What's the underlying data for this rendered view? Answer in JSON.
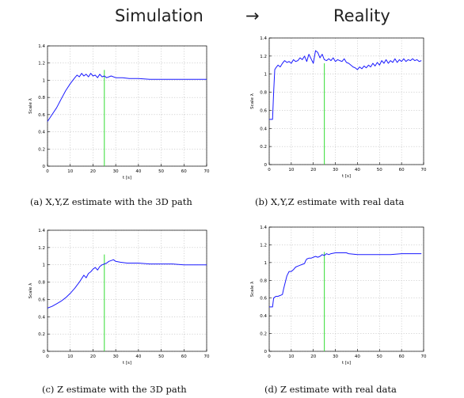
{
  "header": {
    "left": "Simulation",
    "arrow": "→",
    "right": "Reality"
  },
  "captions": [
    "(a) X,Y,Z estimate with the 3D path",
    "(b) X,Y,Z estimate with real data",
    "(c) Z estimate with the 3D path",
    "(d) Z estimate with real data"
  ],
  "colors": {
    "series": "#1a1aff",
    "marker": "#33dd33",
    "grid": "#bbbbbb",
    "axis": "#000000"
  },
  "chart_data": [
    {
      "type": "line",
      "xlabel": "t [s]",
      "ylabel": "Scale λ",
      "xlim": [
        0,
        70
      ],
      "ylim": [
        0,
        1.4
      ],
      "xticks": [
        0,
        10,
        20,
        30,
        40,
        50,
        60,
        70
      ],
      "yticks": [
        0,
        0.2,
        0.4,
        0.6,
        0.8,
        1,
        1.2,
        1.4
      ],
      "grid": true,
      "marker_x": 25,
      "series": [
        {
          "x": [
            0,
            2,
            4,
            6,
            8,
            10,
            12,
            13,
            14,
            15,
            16,
            17,
            18,
            19,
            20,
            21,
            22,
            23,
            24,
            25,
            26,
            27,
            28,
            30,
            33,
            36,
            40,
            45,
            50,
            55,
            60,
            65,
            70
          ],
          "y": [
            0.52,
            0.6,
            0.68,
            0.78,
            0.88,
            0.96,
            1.03,
            1.06,
            1.04,
            1.08,
            1.05,
            1.07,
            1.04,
            1.08,
            1.05,
            1.06,
            1.03,
            1.07,
            1.04,
            1.05,
            1.03,
            1.04,
            1.05,
            1.03,
            1.03,
            1.02,
            1.02,
            1.01,
            1.01,
            1.01,
            1.01,
            1.01,
            1.01
          ]
        }
      ]
    },
    {
      "type": "line",
      "xlabel": "t [s]",
      "ylabel": "Scale λ",
      "xlim": [
        0,
        70
      ],
      "ylim": [
        0,
        1.4
      ],
      "xticks": [
        0,
        10,
        20,
        30,
        40,
        50,
        60,
        70
      ],
      "yticks": [
        0,
        0.2,
        0.4,
        0.6,
        0.8,
        1,
        1.2,
        1.4
      ],
      "grid": true,
      "marker_x": 25,
      "series": [
        {
          "x": [
            0,
            1.5,
            2,
            2.5,
            3,
            4,
            5,
            6,
            7,
            8,
            9,
            10,
            11,
            12,
            13,
            14,
            15,
            16,
            17,
            18,
            19,
            20,
            21,
            22,
            23,
            24,
            25,
            26,
            27,
            28,
            29,
            30,
            31,
            32,
            33,
            34,
            35,
            36,
            37,
            38,
            39,
            40,
            41,
            42,
            43,
            44,
            45,
            46,
            47,
            48,
            49,
            50,
            51,
            52,
            53,
            54,
            55,
            56,
            57,
            58,
            59,
            60,
            61,
            62,
            63,
            64,
            65,
            66,
            67,
            68,
            69
          ],
          "y": [
            0.5,
            0.5,
            0.8,
            1.05,
            1.07,
            1.1,
            1.08,
            1.12,
            1.15,
            1.13,
            1.14,
            1.12,
            1.16,
            1.14,
            1.15,
            1.18,
            1.16,
            1.2,
            1.14,
            1.22,
            1.17,
            1.12,
            1.26,
            1.24,
            1.18,
            1.22,
            1.16,
            1.15,
            1.17,
            1.15,
            1.18,
            1.14,
            1.16,
            1.15,
            1.14,
            1.17,
            1.13,
            1.12,
            1.1,
            1.08,
            1.07,
            1.05,
            1.08,
            1.06,
            1.09,
            1.07,
            1.1,
            1.08,
            1.12,
            1.09,
            1.13,
            1.1,
            1.15,
            1.12,
            1.16,
            1.12,
            1.15,
            1.13,
            1.17,
            1.13,
            1.16,
            1.14,
            1.17,
            1.14,
            1.16,
            1.15,
            1.17,
            1.15,
            1.16,
            1.14,
            1.15
          ]
        }
      ]
    },
    {
      "type": "line",
      "xlabel": "t [s]",
      "ylabel": "Scale λ",
      "xlim": [
        0,
        70
      ],
      "ylim": [
        0,
        1.4
      ],
      "xticks": [
        0,
        10,
        20,
        30,
        40,
        50,
        60,
        70
      ],
      "yticks": [
        0,
        0.2,
        0.4,
        0.6,
        0.8,
        1,
        1.2,
        1.4
      ],
      "grid": true,
      "marker_x": 25,
      "series": [
        {
          "x": [
            0,
            2,
            4,
            6,
            8,
            10,
            12,
            14,
            16,
            17,
            18,
            19,
            20,
            21,
            22,
            23,
            24,
            25,
            26,
            27,
            28,
            29,
            30,
            32,
            35,
            40,
            45,
            50,
            55,
            60,
            65,
            70
          ],
          "y": [
            0.5,
            0.52,
            0.55,
            0.58,
            0.62,
            0.67,
            0.73,
            0.8,
            0.88,
            0.85,
            0.9,
            0.92,
            0.95,
            0.97,
            0.94,
            0.98,
            1.0,
            1.01,
            1.02,
            1.04,
            1.05,
            1.06,
            1.04,
            1.03,
            1.02,
            1.02,
            1.01,
            1.01,
            1.01,
            1.0,
            1.0,
            1.0
          ]
        }
      ]
    },
    {
      "type": "line",
      "xlabel": "t [s]",
      "ylabel": "Scale λ",
      "xlim": [
        0,
        70
      ],
      "ylim": [
        0,
        1.4
      ],
      "xticks": [
        0,
        10,
        20,
        30,
        40,
        50,
        60,
        70
      ],
      "yticks": [
        0,
        0.2,
        0.4,
        0.6,
        0.8,
        1,
        1.2,
        1.4
      ],
      "grid": true,
      "marker_x": 25,
      "series": [
        {
          "x": [
            0,
            1.5,
            2,
            3,
            4,
            5,
            6,
            6.5,
            7,
            8,
            9,
            10,
            11,
            12,
            13,
            14,
            15,
            16,
            16.5,
            17,
            18,
            19,
            20,
            21,
            22,
            23,
            24,
            25,
            26,
            27,
            28,
            30,
            32,
            34,
            35,
            36,
            40,
            45,
            50,
            55,
            60,
            65,
            69
          ],
          "y": [
            0.5,
            0.5,
            0.6,
            0.62,
            0.62,
            0.63,
            0.64,
            0.7,
            0.75,
            0.85,
            0.9,
            0.9,
            0.92,
            0.95,
            0.96,
            0.97,
            0.98,
            0.99,
            1.02,
            1.04,
            1.05,
            1.05,
            1.06,
            1.07,
            1.06,
            1.07,
            1.09,
            1.08,
            1.1,
            1.09,
            1.1,
            1.11,
            1.11,
            1.11,
            1.11,
            1.1,
            1.09,
            1.09,
            1.09,
            1.09,
            1.1,
            1.1,
            1.1
          ]
        }
      ]
    }
  ]
}
